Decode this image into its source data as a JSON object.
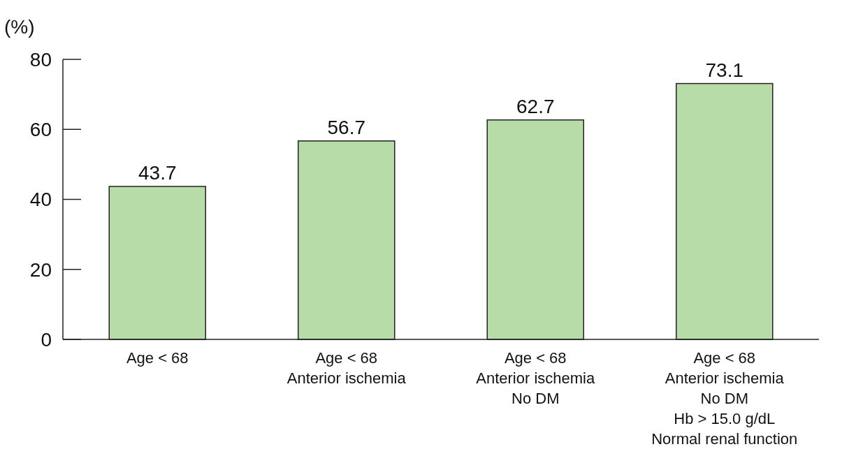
{
  "chart_data": {
    "type": "bar",
    "ylabel": "(%)",
    "categories": [
      "Age < 68",
      "Age < 68\nAnterior ischemia",
      "Age < 68\nAnterior ischemia\nNo DM",
      "Age < 68\nAnterior ischemia\nNo DM\nHb > 15.0 g/dL\nNormal renal function"
    ],
    "values": [
      43.7,
      56.7,
      62.7,
      73.1
    ],
    "color": "#b8dca8",
    "ylim": [
      0,
      80
    ],
    "yticks": [
      0,
      20,
      40,
      60,
      80
    ],
    "grid": false,
    "data_labels": true
  }
}
